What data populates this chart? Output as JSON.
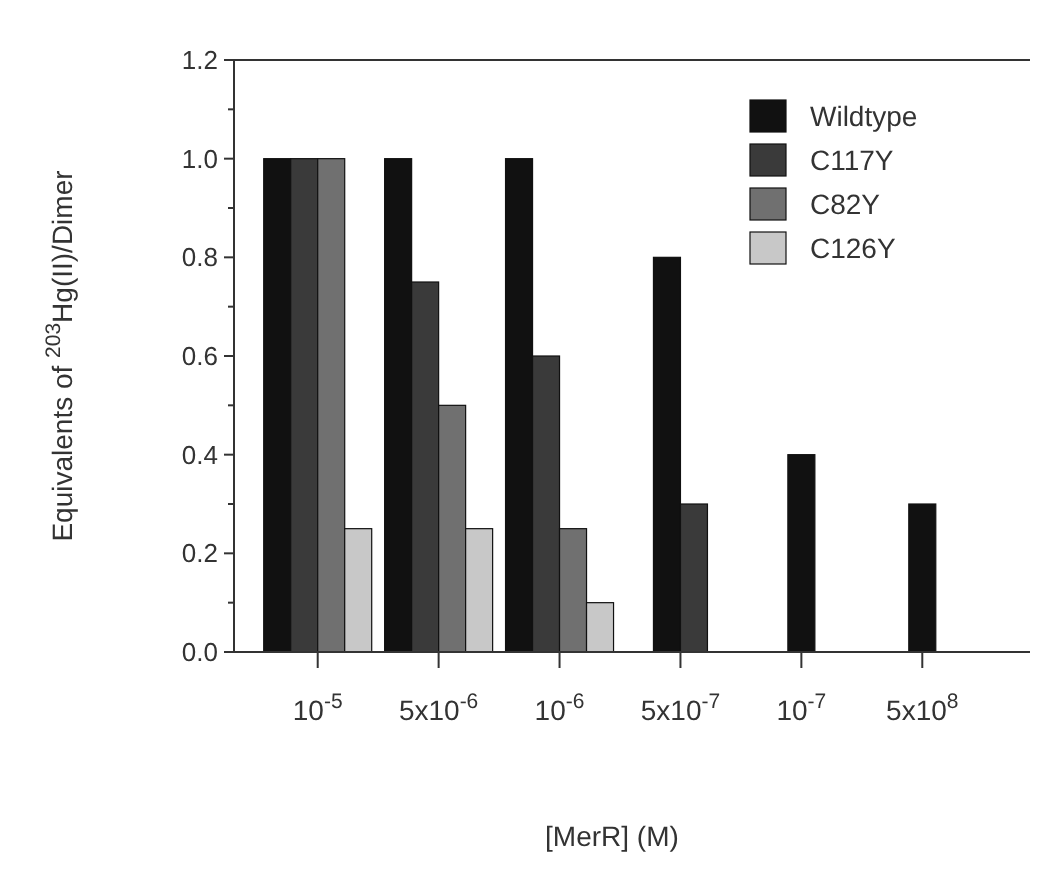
{
  "chart_data": {
    "type": "bar",
    "ylabel": "Equivalents of $^{203}$Hg(II)/Dimer",
    "xlabel": "[MerR]  (M)",
    "categories": [
      "10$^{-5}$",
      "5x10$^{-6}$",
      "10$^{-6}$",
      "5x10$^{-7}$",
      "10$^{-7}$",
      "5x10$^{8}$"
    ],
    "series": [
      {
        "name": "Wildtype",
        "color": "#111111",
        "values": [
          1.0,
          1.0,
          1.0,
          0.8,
          0.4,
          0.3
        ]
      },
      {
        "name": "C117Y",
        "color": "#3a3a3a",
        "values": [
          1.0,
          0.75,
          0.6,
          0.3,
          null,
          null
        ]
      },
      {
        "name": "C82Y",
        "color": "#707070",
        "values": [
          1.0,
          0.5,
          0.25,
          null,
          null,
          null
        ]
      },
      {
        "name": "C126Y",
        "color": "#c8c8c8",
        "values": [
          0.25,
          0.25,
          0.1,
          null,
          null,
          null
        ]
      }
    ],
    "ylim": [
      0,
      1.2
    ],
    "yticks": [
      {
        "value": 0,
        "label": "0.0"
      },
      {
        "value": 0.2,
        "label": "0.2"
      },
      {
        "value": 0.4,
        "label": "0.4"
      },
      {
        "value": 0.6,
        "label": "0.6"
      },
      {
        "value": 0.8,
        "label": "0.8"
      },
      {
        "value": 1.0,
        "label": "1.0"
      },
      {
        "value": 1.2,
        "label": "1.2"
      }
    ],
    "grid": false,
    "legend": "top right"
  }
}
